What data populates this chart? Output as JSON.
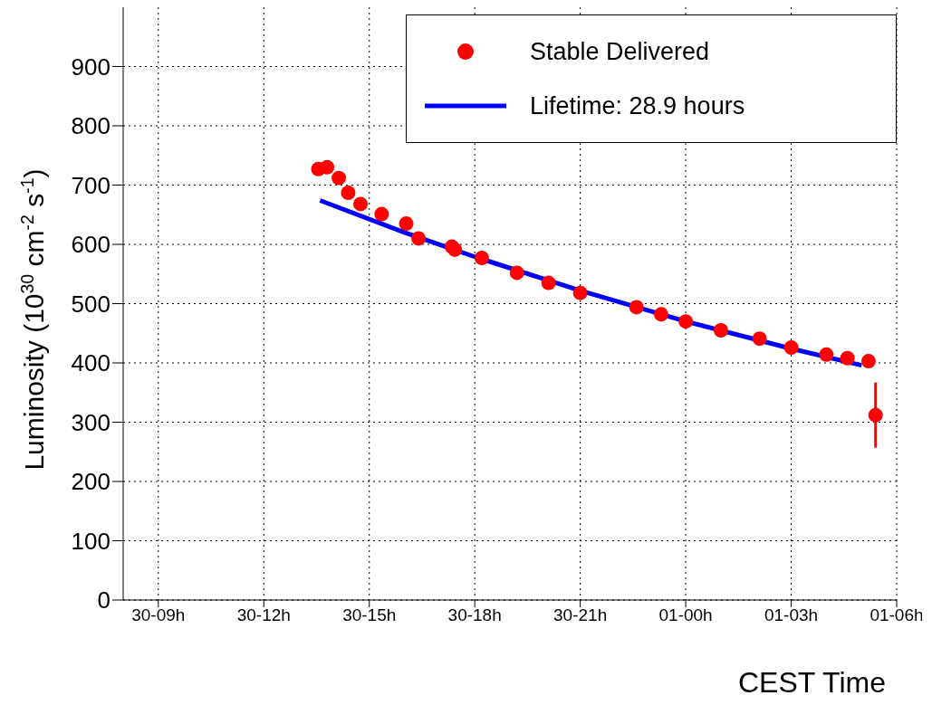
{
  "chart_data": {
    "type": "scatter",
    "xlabel": "CEST Time",
    "ylabel": "Luminosity (10$^{30}$ cm$^{-2}$ s$^{-1}$)",
    "xlim": [
      "--09-30T08:00",
      "--10-01T06:00"
    ],
    "ylim": [
      0,
      1000
    ],
    "xticks": [
      {
        "value": "--09-30T09:00",
        "label": "30-09h"
      },
      {
        "value": "--09-30T12:00",
        "label": "30-12h"
      },
      {
        "value": "--09-30T15:00",
        "label": "30-15h"
      },
      {
        "value": "--09-30T18:00",
        "label": "30-18h"
      },
      {
        "value": "--09-30T21:00",
        "label": "30-21h"
      },
      {
        "value": "--10-01T00:00",
        "label": "01-00h"
      },
      {
        "value": "--10-01T03:00",
        "label": "01-03h"
      },
      {
        "value": "--10-01T06:00",
        "label": "01-06h"
      }
    ],
    "yticks": [
      0,
      100,
      200,
      300,
      400,
      500,
      600,
      700,
      800,
      900
    ],
    "grid": true,
    "legend": "top right",
    "marker": "circle",
    "series": [
      {
        "name": "Stable Delivered",
        "color": "#ff0000",
        "x": [
          "--09-30T13:33",
          "--09-30T13:48",
          "--09-30T14:08",
          "--09-30T14:24",
          "--09-30T14:45",
          "--09-30T15:21",
          "--09-30T16:03",
          "--09-30T16:24",
          "--09-30T17:21",
          "--09-30T17:26",
          "--09-30T18:12",
          "--09-30T19:12",
          "--09-30T20:06",
          "--09-30T21:00",
          "--09-30T22:36",
          "--09-30T23:18",
          "--10-01T00:00",
          "--10-01T01:00",
          "--10-01T02:06",
          "--10-01T03:00",
          "--10-01T04:00",
          "--10-01T04:36",
          "--10-01T05:12",
          "--10-01T05:24"
        ],
        "values": [
          727,
          730,
          712,
          687,
          668,
          651,
          635,
          610,
          596,
          591,
          577,
          552,
          535,
          518,
          494,
          482,
          470,
          455,
          441,
          426,
          414,
          408,
          403,
          312
        ],
        "errors": [
          null,
          null,
          null,
          null,
          null,
          null,
          null,
          null,
          null,
          null,
          null,
          null,
          null,
          null,
          null,
          null,
          null,
          null,
          null,
          null,
          null,
          null,
          null,
          55
        ]
      },
      {
        "name": "Lifetime: 28.9 hours",
        "type": "line",
        "color": "#0000ff",
        "marker": "none",
        "x": [
          "--09-30T13:36",
          "--09-30T16:00",
          "--09-30T18:00",
          "--09-30T21:00",
          "--10-01T00:00",
          "--10-01T03:00",
          "--10-01T05:00"
        ],
        "values": [
          674,
          620,
          579,
          522,
          470,
          424,
          396
        ]
      }
    ]
  }
}
